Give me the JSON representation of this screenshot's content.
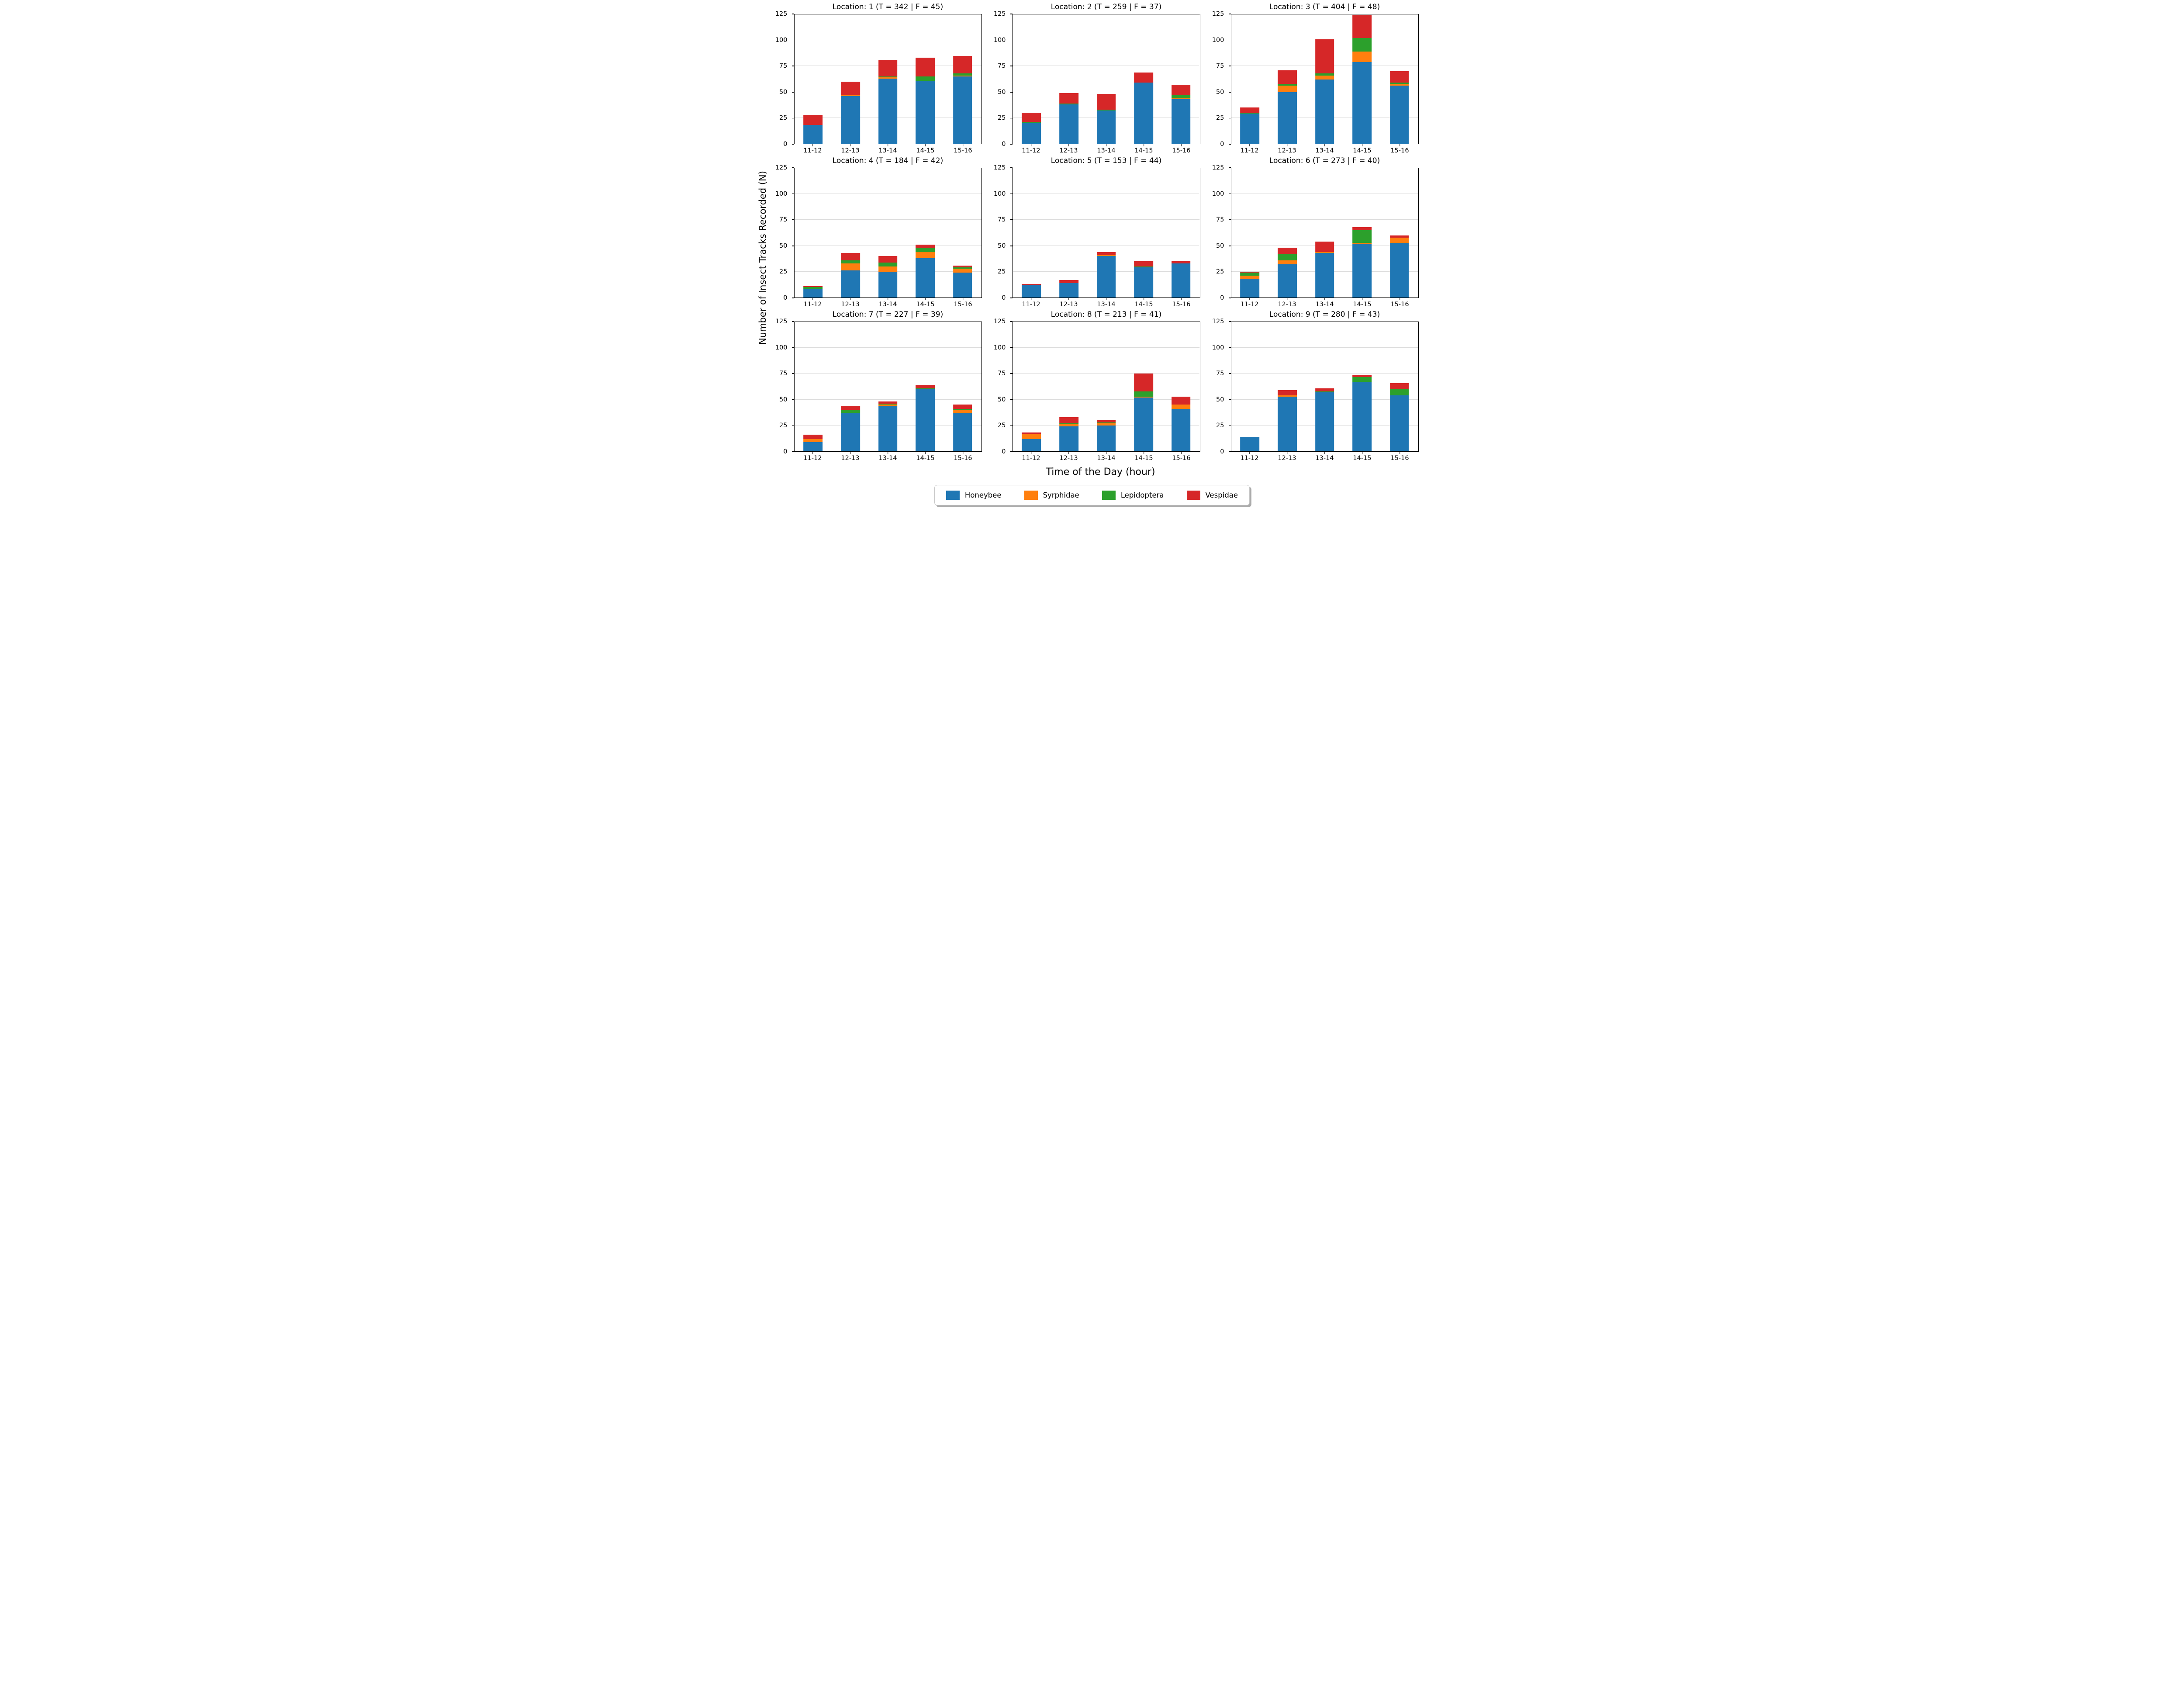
{
  "figure": {
    "ylabel": "Number of Insect Tracks Recorded (N)",
    "xlabel": "Time of the Day (hour)",
    "background_color": "#ffffff",
    "grid_color": "#dcdcdc",
    "spine_color": "#000000",
    "legend": {
      "position": "bottom-center",
      "entries": [
        {
          "label": "Honeybee",
          "color": "#1f77b4"
        },
        {
          "label": "Syrphidae",
          "color": "#ff7f0e"
        },
        {
          "label": "Lepidoptera",
          "color": "#2ca02c"
        },
        {
          "label": "Vespidae",
          "color": "#d62728"
        }
      ]
    }
  },
  "chart_data": [
    {
      "type": "bar",
      "stacked": true,
      "grid": true,
      "title": "Location: 1 (T = 342 | F = 45)",
      "location": 1,
      "T": 342,
      "F": 45,
      "categories": [
        "11-12",
        "12-13",
        "13-14",
        "14-15",
        "15-16"
      ],
      "yticks": [
        0,
        25,
        50,
        75,
        100,
        125
      ],
      "ylim": [
        0,
        125
      ],
      "series": [
        {
          "name": "Honeybee",
          "values": [
            18,
            46,
            63,
            61,
            65
          ]
        },
        {
          "name": "Syrphidae",
          "values": [
            0,
            1,
            1,
            0,
            1
          ]
        },
        {
          "name": "Lepidoptera",
          "values": [
            0,
            0,
            1,
            4,
            2
          ]
        },
        {
          "name": "Vespidae",
          "values": [
            10,
            13,
            16,
            18,
            17
          ]
        }
      ]
    },
    {
      "type": "bar",
      "stacked": true,
      "grid": true,
      "title": "Location: 2 (T = 259 | F = 37)",
      "location": 2,
      "T": 259,
      "F": 37,
      "categories": [
        "11-12",
        "12-13",
        "13-14",
        "14-15",
        "15-16"
      ],
      "yticks": [
        0,
        25,
        50,
        75,
        100,
        125
      ],
      "ylim": [
        0,
        125
      ],
      "series": [
        {
          "name": "Honeybee",
          "values": [
            20,
            38,
            32,
            59,
            43
          ]
        },
        {
          "name": "Syrphidae",
          "values": [
            0,
            0,
            0,
            0,
            1
          ]
        },
        {
          "name": "Lepidoptera",
          "values": [
            1,
            1,
            1,
            0,
            3
          ]
        },
        {
          "name": "Vespidae",
          "values": [
            9,
            10,
            15,
            10,
            10
          ]
        }
      ]
    },
    {
      "type": "bar",
      "stacked": true,
      "grid": true,
      "title": "Location: 3 (T = 404 | F = 48)",
      "location": 3,
      "T": 404,
      "F": 48,
      "categories": [
        "11-12",
        "12-13",
        "13-14",
        "14-15",
        "15-16"
      ],
      "yticks": [
        0,
        25,
        50,
        75,
        100,
        125
      ],
      "ylim": [
        0,
        125
      ],
      "series": [
        {
          "name": "Honeybee",
          "values": [
            29,
            50,
            62,
            79,
            56
          ]
        },
        {
          "name": "Syrphidae",
          "values": [
            0,
            6,
            4,
            10,
            2
          ]
        },
        {
          "name": "Lepidoptera",
          "values": [
            1,
            2,
            2,
            13,
            1
          ]
        },
        {
          "name": "Vespidae",
          "values": [
            5,
            13,
            33,
            22,
            11
          ]
        }
      ]
    },
    {
      "type": "bar",
      "stacked": true,
      "grid": true,
      "title": "Location: 4 (T = 184 | F = 42)",
      "location": 4,
      "T": 184,
      "F": 42,
      "categories": [
        "11-12",
        "12-13",
        "13-14",
        "14-15",
        "15-16"
      ],
      "yticks": [
        0,
        25,
        50,
        75,
        100,
        125
      ],
      "ylim": [
        0,
        125
      ],
      "series": [
        {
          "name": "Honeybee",
          "values": [
            8,
            26,
            25,
            38,
            24
          ]
        },
        {
          "name": "Syrphidae",
          "values": [
            0,
            7,
            5,
            6,
            4
          ]
        },
        {
          "name": "Lepidoptera",
          "values": [
            2,
            3,
            4,
            4,
            1
          ]
        },
        {
          "name": "Vespidae",
          "values": [
            1,
            7,
            6,
            3,
            2
          ]
        }
      ]
    },
    {
      "type": "bar",
      "stacked": true,
      "grid": true,
      "title": "Location: 5 (T = 153 | F = 44)",
      "location": 5,
      "T": 153,
      "F": 44,
      "categories": [
        "11-12",
        "12-13",
        "13-14",
        "14-15",
        "15-16"
      ],
      "yticks": [
        0,
        25,
        50,
        75,
        100,
        125
      ],
      "ylim": [
        0,
        125
      ],
      "series": [
        {
          "name": "Honeybee",
          "values": [
            12,
            14,
            40,
            29,
            33
          ]
        },
        {
          "name": "Syrphidae",
          "values": [
            0,
            0,
            1,
            0,
            0
          ]
        },
        {
          "name": "Lepidoptera",
          "values": [
            0,
            0,
            0,
            1,
            0
          ]
        },
        {
          "name": "Vespidae",
          "values": [
            1,
            3,
            3,
            5,
            2
          ]
        }
      ]
    },
    {
      "type": "bar",
      "stacked": true,
      "grid": true,
      "title": "Location: 6 (T = 273 | F = 40)",
      "location": 6,
      "T": 273,
      "F": 40,
      "categories": [
        "11-12",
        "12-13",
        "13-14",
        "14-15",
        "15-16"
      ],
      "yticks": [
        0,
        25,
        50,
        75,
        100,
        125
      ],
      "ylim": [
        0,
        125
      ],
      "series": [
        {
          "name": "Honeybee",
          "values": [
            18,
            32,
            43,
            52,
            53
          ]
        },
        {
          "name": "Syrphidae",
          "values": [
            3,
            4,
            1,
            1,
            5
          ]
        },
        {
          "name": "Lepidoptera",
          "values": [
            3,
            6,
            0,
            12,
            0
          ]
        },
        {
          "name": "Vespidae",
          "values": [
            1,
            6,
            10,
            3,
            2
          ]
        }
      ]
    },
    {
      "type": "bar",
      "stacked": true,
      "grid": true,
      "title": "Location: 7 (T = 227 | F = 39)",
      "location": 7,
      "T": 227,
      "F": 39,
      "categories": [
        "11-12",
        "12-13",
        "13-14",
        "14-15",
        "15-16"
      ],
      "yticks": [
        0,
        25,
        50,
        75,
        100,
        125
      ],
      "ylim": [
        0,
        125
      ],
      "series": [
        {
          "name": "Honeybee",
          "values": [
            9,
            37,
            44,
            60,
            37
          ]
        },
        {
          "name": "Syrphidae",
          "values": [
            3,
            0,
            1,
            0,
            3
          ]
        },
        {
          "name": "Lepidoptera",
          "values": [
            0,
            3,
            1,
            1,
            1
          ]
        },
        {
          "name": "Vespidae",
          "values": [
            4,
            4,
            2,
            3,
            4
          ]
        }
      ]
    },
    {
      "type": "bar",
      "stacked": true,
      "grid": true,
      "title": "Location: 8 (T = 213 | F = 41)",
      "location": 8,
      "T": 213,
      "F": 41,
      "categories": [
        "11-12",
        "12-13",
        "13-14",
        "14-15",
        "15-16"
      ],
      "yticks": [
        0,
        25,
        50,
        75,
        100,
        125
      ],
      "ylim": [
        0,
        125
      ],
      "series": [
        {
          "name": "Honeybee",
          "values": [
            12,
            24,
            25,
            52,
            41
          ]
        },
        {
          "name": "Syrphidae",
          "values": [
            5,
            2,
            2,
            1,
            4
          ]
        },
        {
          "name": "Lepidoptera",
          "values": [
            0,
            1,
            1,
            5,
            0
          ]
        },
        {
          "name": "Vespidae",
          "values": [
            1,
            6,
            2,
            17,
            8
          ]
        }
      ]
    },
    {
      "type": "bar",
      "stacked": true,
      "grid": true,
      "title": "Location: 9 (T = 280 | F = 43)",
      "location": 9,
      "T": 280,
      "F": 43,
      "categories": [
        "11-12",
        "12-13",
        "13-14",
        "14-15",
        "15-16"
      ],
      "yticks": [
        0,
        25,
        50,
        75,
        100,
        125
      ],
      "ylim": [
        0,
        125
      ],
      "series": [
        {
          "name": "Honeybee",
          "values": [
            14,
            53,
            57,
            67,
            54
          ]
        },
        {
          "name": "Syrphidae",
          "values": [
            0,
            1,
            0,
            0,
            0
          ]
        },
        {
          "name": "Lepidoptera",
          "values": [
            0,
            0,
            1,
            5,
            6
          ]
        },
        {
          "name": "Vespidae",
          "values": [
            0,
            5,
            3,
            2,
            6
          ]
        }
      ]
    }
  ]
}
